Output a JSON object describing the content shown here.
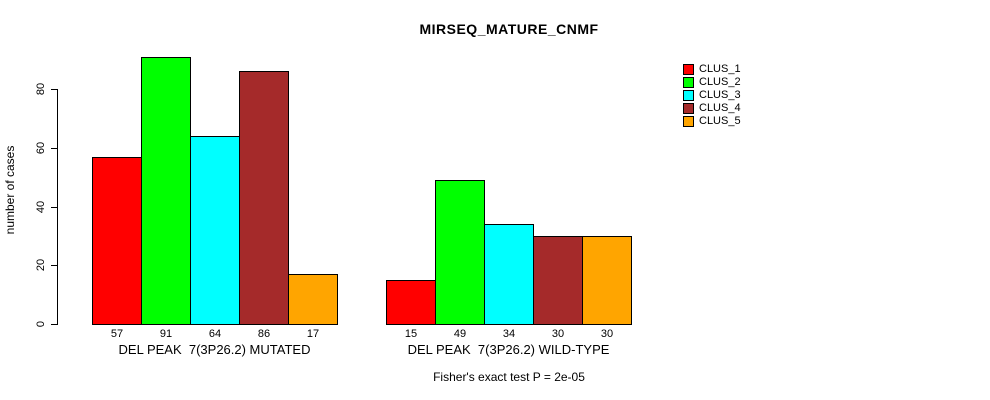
{
  "chart_data": {
    "type": "bar",
    "title": "MIRSEQ_MATURE_CNMF",
    "xlabel": "",
    "ylabel": "number of cases",
    "ylim": [
      0,
      91
    ],
    "yticks": [
      0,
      20,
      40,
      60,
      80
    ],
    "grid": false,
    "bar_value_labels": true,
    "categories": [
      "DEL PEAK  7(3P26.2) MUTATED",
      "DEL PEAK  7(3P26.2) WILD-TYPE"
    ],
    "series": [
      {
        "name": "CLUS_1",
        "color": "#ff0000",
        "values": [
          57,
          15
        ]
      },
      {
        "name": "CLUS_2",
        "color": "#00ff00",
        "values": [
          91,
          49
        ]
      },
      {
        "name": "CLUS_3",
        "color": "#00ffff",
        "values": [
          64,
          34
        ]
      },
      {
        "name": "CLUS_4",
        "color": "#a52a2a",
        "values": [
          86,
          30
        ]
      },
      {
        "name": "CLUS_5",
        "color": "#ffa500",
        "values": [
          17,
          30
        ]
      }
    ],
    "legend_position": "right",
    "annotation": "Fisher's exact test P = 2e-05"
  }
}
